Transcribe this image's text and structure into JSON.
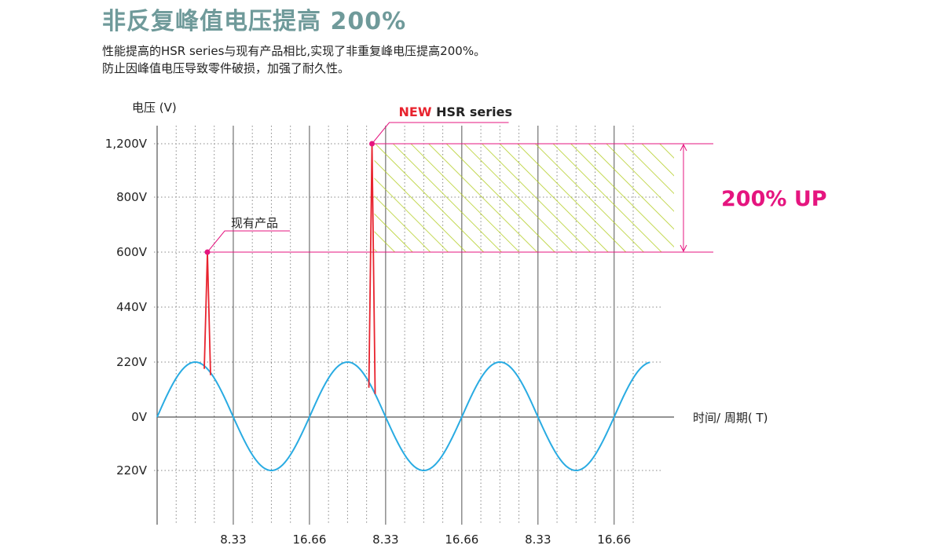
{
  "header": {
    "headline": "非反复峰值电压提高 200%",
    "line1": "性能提高的HSR series与现有产品相比,实现了非重复峰电压提高200%。",
    "line2": "防止因峰值电压导致零件破损，加强了耐久性。"
  },
  "colors": {
    "headline": "#6f9a9a",
    "sine": "#29abe2",
    "spike": "#e8232e",
    "magenta": "#e5157f",
    "hatch": "#b5cf2a",
    "grid": "#888888",
    "axis": "#555555"
  },
  "chart_data": {
    "type": "line",
    "ylabel": "电压 (V)",
    "xlabel": "时间/ 周期( T)",
    "y_ticks": [
      {
        "value": 1200,
        "label": "1,200V"
      },
      {
        "value": 800,
        "label": "800V"
      },
      {
        "value": 600,
        "label": "600V"
      },
      {
        "value": 440,
        "label": "440V"
      },
      {
        "value": 220,
        "label": "220V"
      },
      {
        "value": 0,
        "label": "0V"
      },
      {
        "value": -220,
        "label": "220V"
      }
    ],
    "x_ticks": [
      {
        "value": 8.33,
        "label": "8.33"
      },
      {
        "value": 16.66,
        "label": "16.66"
      },
      {
        "value": 24.99,
        "label": "8.33"
      },
      {
        "value": 33.32,
        "label": "16.66"
      },
      {
        "value": 41.65,
        "label": "8.33"
      },
      {
        "value": 49.98,
        "label": "16.66"
      }
    ],
    "x_range": [
      0,
      54
    ],
    "series": [
      {
        "name": "",
        "amplitude": 220,
        "period": 16.66,
        "x_start": 0,
        "x_end": 54
      }
    ],
    "spikes": [
      {
        "label": "现有产品",
        "x": 5.5,
        "peak": 600
      },
      {
        "label_accent": "NEW",
        "label_rest": " HSR series",
        "x": 23.5,
        "peak": 1200
      }
    ],
    "improvement": {
      "from": 600,
      "to": 1200,
      "label": "200% UP"
    }
  }
}
